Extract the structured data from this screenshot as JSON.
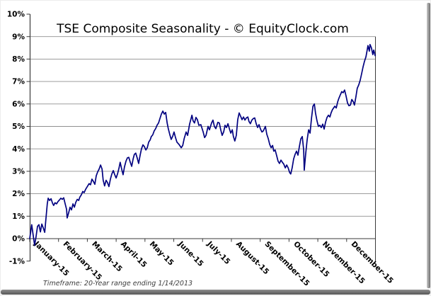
{
  "chart_data": {
    "type": "line",
    "title": "TSE Composite Seasonality - © EquityClock.com",
    "footnote": "Timeframe: 20-Year range ending 1/14/2013",
    "x_categories": [
      "January-15",
      "February-15",
      "March-15",
      "April-15",
      "May-15",
      "June-15",
      "July-15",
      "August-15",
      "September-15",
      "October-15",
      "November-15",
      "December-15"
    ],
    "y_tick_labels": [
      "10%",
      "9%",
      "8%",
      "7%",
      "6%",
      "5%",
      "4%",
      "3%",
      "2%",
      "1%",
      "0%",
      "-1%"
    ],
    "ylim": [
      -1,
      10
    ],
    "xlim_months": [
      0,
      12
    ],
    "grid": "horizontal",
    "legend": "none",
    "line_color": "#000080",
    "grid_color": "#8f8f8f",
    "axis_color": "#3a3a3a",
    "text_color": "#000000",
    "footnote_color": "#3c3c3c",
    "series": [
      {
        "points": [
          [
            0.0,
            0.0
          ],
          [
            0.07,
            0.62
          ],
          [
            0.12,
            0.15
          ],
          [
            0.17,
            -0.3
          ],
          [
            0.22,
            0.1
          ],
          [
            0.27,
            0.55
          ],
          [
            0.32,
            0.62
          ],
          [
            0.37,
            0.3
          ],
          [
            0.42,
            0.65
          ],
          [
            0.47,
            0.48
          ],
          [
            0.52,
            0.28
          ],
          [
            0.56,
            0.85
          ],
          [
            0.61,
            1.55
          ],
          [
            0.64,
            1.8
          ],
          [
            0.69,
            1.7
          ],
          [
            0.74,
            1.78
          ],
          [
            0.79,
            1.58
          ],
          [
            0.83,
            1.48
          ],
          [
            0.88,
            1.6
          ],
          [
            0.93,
            1.55
          ],
          [
            0.98,
            1.65
          ],
          [
            1.03,
            1.72
          ],
          [
            1.08,
            1.8
          ],
          [
            1.13,
            1.75
          ],
          [
            1.18,
            1.82
          ],
          [
            1.23,
            1.55
          ],
          [
            1.28,
            1.3
          ],
          [
            1.3,
            0.92
          ],
          [
            1.35,
            1.15
          ],
          [
            1.4,
            1.4
          ],
          [
            1.45,
            1.28
          ],
          [
            1.5,
            1.55
          ],
          [
            1.55,
            1.4
          ],
          [
            1.6,
            1.62
          ],
          [
            1.65,
            1.75
          ],
          [
            1.7,
            1.7
          ],
          [
            1.74,
            1.85
          ],
          [
            1.79,
            1.95
          ],
          [
            1.84,
            2.1
          ],
          [
            1.89,
            2.05
          ],
          [
            1.94,
            2.2
          ],
          [
            1.99,
            2.3
          ],
          [
            2.06,
            2.45
          ],
          [
            2.11,
            2.4
          ],
          [
            2.16,
            2.65
          ],
          [
            2.21,
            2.55
          ],
          [
            2.26,
            2.42
          ],
          [
            2.31,
            2.8
          ],
          [
            2.36,
            2.98
          ],
          [
            2.41,
            3.1
          ],
          [
            2.46,
            3.28
          ],
          [
            2.51,
            3.1
          ],
          [
            2.55,
            2.6
          ],
          [
            2.6,
            2.35
          ],
          [
            2.65,
            2.6
          ],
          [
            2.7,
            2.5
          ],
          [
            2.75,
            2.32
          ],
          [
            2.8,
            2.65
          ],
          [
            2.85,
            2.88
          ],
          [
            2.9,
            3.03
          ],
          [
            2.95,
            2.85
          ],
          [
            3.0,
            2.7
          ],
          [
            3.05,
            2.9
          ],
          [
            3.1,
            3.15
          ],
          [
            3.14,
            3.4
          ],
          [
            3.19,
            3.1
          ],
          [
            3.24,
            2.85
          ],
          [
            3.29,
            3.2
          ],
          [
            3.34,
            3.45
          ],
          [
            3.39,
            3.6
          ],
          [
            3.44,
            3.62
          ],
          [
            3.49,
            3.4
          ],
          [
            3.54,
            3.22
          ],
          [
            3.59,
            3.55
          ],
          [
            3.63,
            3.75
          ],
          [
            3.68,
            3.81
          ],
          [
            3.73,
            3.6
          ],
          [
            3.78,
            3.35
          ],
          [
            3.83,
            3.7
          ],
          [
            3.88,
            4.0
          ],
          [
            3.93,
            4.18
          ],
          [
            3.98,
            4.1
          ],
          [
            4.03,
            3.95
          ],
          [
            4.08,
            4.05
          ],
          [
            4.13,
            4.3
          ],
          [
            4.18,
            4.4
          ],
          [
            4.22,
            4.55
          ],
          [
            4.27,
            4.62
          ],
          [
            4.32,
            4.8
          ],
          [
            4.37,
            4.9
          ],
          [
            4.42,
            5.05
          ],
          [
            4.47,
            5.15
          ],
          [
            4.52,
            5.35
          ],
          [
            4.57,
            5.55
          ],
          [
            4.62,
            5.68
          ],
          [
            4.67,
            5.55
          ],
          [
            4.72,
            5.62
          ],
          [
            4.77,
            5.15
          ],
          [
            4.81,
            4.9
          ],
          [
            4.86,
            4.65
          ],
          [
            4.91,
            4.42
          ],
          [
            4.96,
            4.55
          ],
          [
            5.01,
            4.75
          ],
          [
            5.06,
            4.5
          ],
          [
            5.11,
            4.3
          ],
          [
            5.18,
            4.2
          ],
          [
            5.26,
            4.05
          ],
          [
            5.31,
            4.15
          ],
          [
            5.36,
            4.45
          ],
          [
            5.43,
            4.75
          ],
          [
            5.48,
            4.6
          ],
          [
            5.55,
            5.1
          ],
          [
            5.63,
            5.5
          ],
          [
            5.67,
            5.25
          ],
          [
            5.72,
            5.15
          ],
          [
            5.77,
            5.4
          ],
          [
            5.82,
            5.3
          ],
          [
            5.87,
            5.05
          ],
          [
            5.94,
            5.08
          ],
          [
            6.02,
            4.75
          ],
          [
            6.07,
            4.5
          ],
          [
            6.12,
            4.6
          ],
          [
            6.19,
            5.0
          ],
          [
            6.24,
            4.85
          ],
          [
            6.31,
            5.15
          ],
          [
            6.36,
            5.28
          ],
          [
            6.41,
            5.0
          ],
          [
            6.46,
            4.9
          ],
          [
            6.53,
            5.18
          ],
          [
            6.58,
            5.15
          ],
          [
            6.63,
            4.85
          ],
          [
            6.68,
            4.6
          ],
          [
            6.73,
            4.75
          ],
          [
            6.78,
            5.05
          ],
          [
            6.83,
            4.95
          ],
          [
            6.88,
            5.12
          ],
          [
            6.93,
            4.9
          ],
          [
            6.98,
            4.7
          ],
          [
            7.03,
            4.85
          ],
          [
            7.07,
            4.55
          ],
          [
            7.12,
            4.35
          ],
          [
            7.17,
            4.6
          ],
          [
            7.22,
            5.3
          ],
          [
            7.27,
            5.6
          ],
          [
            7.32,
            5.45
          ],
          [
            7.37,
            5.3
          ],
          [
            7.42,
            5.42
          ],
          [
            7.47,
            5.28
          ],
          [
            7.52,
            5.38
          ],
          [
            7.57,
            5.42
          ],
          [
            7.61,
            5.22
          ],
          [
            7.66,
            5.12
          ],
          [
            7.71,
            5.28
          ],
          [
            7.76,
            5.35
          ],
          [
            7.81,
            5.38
          ],
          [
            7.86,
            5.12
          ],
          [
            7.91,
            4.95
          ],
          [
            7.96,
            5.08
          ],
          [
            8.01,
            4.88
          ],
          [
            8.06,
            4.75
          ],
          [
            8.11,
            4.8
          ],
          [
            8.18,
            5.0
          ],
          [
            8.23,
            4.65
          ],
          [
            8.28,
            4.45
          ],
          [
            8.33,
            4.2
          ],
          [
            8.38,
            4.05
          ],
          [
            8.43,
            4.15
          ],
          [
            8.47,
            3.9
          ],
          [
            8.52,
            3.95
          ],
          [
            8.57,
            3.7
          ],
          [
            8.62,
            3.45
          ],
          [
            8.67,
            3.35
          ],
          [
            8.72,
            3.5
          ],
          [
            8.77,
            3.4
          ],
          [
            8.82,
            3.32
          ],
          [
            8.87,
            3.15
          ],
          [
            8.92,
            3.28
          ],
          [
            8.97,
            3.15
          ],
          [
            9.02,
            2.95
          ],
          [
            9.06,
            2.88
          ],
          [
            9.11,
            3.15
          ],
          [
            9.16,
            3.55
          ],
          [
            9.21,
            3.75
          ],
          [
            9.26,
            3.9
          ],
          [
            9.31,
            3.72
          ],
          [
            9.36,
            4.1
          ],
          [
            9.41,
            4.45
          ],
          [
            9.46,
            4.55
          ],
          [
            9.51,
            3.95
          ],
          [
            9.53,
            3.05
          ],
          [
            9.58,
            3.8
          ],
          [
            9.63,
            4.4
          ],
          [
            9.68,
            4.85
          ],
          [
            9.73,
            4.7
          ],
          [
            9.78,
            5.35
          ],
          [
            9.83,
            5.9
          ],
          [
            9.88,
            6.0
          ],
          [
            9.92,
            5.6
          ],
          [
            9.97,
            5.25
          ],
          [
            10.02,
            5.0
          ],
          [
            10.07,
            5.05
          ],
          [
            10.12,
            4.95
          ],
          [
            10.17,
            5.1
          ],
          [
            10.22,
            4.88
          ],
          [
            10.27,
            5.2
          ],
          [
            10.32,
            5.4
          ],
          [
            10.37,
            5.5
          ],
          [
            10.42,
            5.42
          ],
          [
            10.46,
            5.6
          ],
          [
            10.51,
            5.75
          ],
          [
            10.59,
            5.9
          ],
          [
            10.64,
            5.82
          ],
          [
            10.69,
            6.1
          ],
          [
            10.73,
            6.25
          ],
          [
            10.78,
            6.4
          ],
          [
            10.83,
            6.55
          ],
          [
            10.88,
            6.5
          ],
          [
            10.93,
            6.62
          ],
          [
            10.98,
            6.35
          ],
          [
            11.03,
            6.05
          ],
          [
            11.08,
            5.92
          ],
          [
            11.13,
            5.95
          ],
          [
            11.18,
            6.2
          ],
          [
            11.23,
            6.1
          ],
          [
            11.27,
            5.95
          ],
          [
            11.32,
            6.3
          ],
          [
            11.37,
            6.7
          ],
          [
            11.42,
            6.85
          ],
          [
            11.47,
            7.05
          ],
          [
            11.52,
            7.35
          ],
          [
            11.57,
            7.65
          ],
          [
            11.62,
            7.9
          ],
          [
            11.67,
            8.1
          ],
          [
            11.72,
            8.45
          ],
          [
            11.74,
            8.6
          ],
          [
            11.79,
            8.35
          ],
          [
            11.81,
            8.65
          ],
          [
            11.86,
            8.5
          ],
          [
            11.91,
            8.2
          ],
          [
            11.94,
            8.4
          ],
          [
            11.99,
            8.15
          ]
        ]
      }
    ]
  }
}
